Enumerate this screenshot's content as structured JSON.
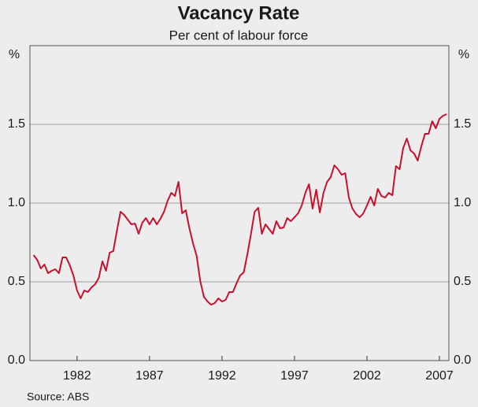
{
  "chart_data": {
    "type": "line",
    "title": "Vacancy Rate",
    "subtitle": "Per cent of labour force",
    "y_unit": "%",
    "source": "Source: ABS",
    "x": [
      1979,
      1979.25,
      1979.5,
      1979.75,
      1980,
      1980.25,
      1980.5,
      1980.75,
      1981,
      1981.25,
      1981.5,
      1981.75,
      1982,
      1982.25,
      1982.5,
      1982.75,
      1983,
      1983.25,
      1983.5,
      1983.75,
      1984,
      1984.25,
      1984.5,
      1984.75,
      1985,
      1985.25,
      1985.5,
      1985.75,
      1986,
      1986.25,
      1986.5,
      1986.75,
      1987,
      1987.25,
      1987.5,
      1987.75,
      1988,
      1988.25,
      1988.5,
      1988.75,
      1989,
      1989.25,
      1989.5,
      1989.75,
      1990,
      1990.25,
      1990.5,
      1990.75,
      1991,
      1991.25,
      1991.5,
      1991.75,
      1992,
      1992.25,
      1992.5,
      1992.75,
      1993,
      1993.25,
      1993.5,
      1993.75,
      1994,
      1994.25,
      1994.5,
      1994.75,
      1995,
      1995.25,
      1995.5,
      1995.75,
      1996,
      1996.25,
      1996.5,
      1996.75,
      1997,
      1997.25,
      1997.5,
      1997.75,
      1998,
      1998.25,
      1998.5,
      1998.75,
      1999,
      1999.25,
      1999.5,
      1999.75,
      2000,
      2000.25,
      2000.5,
      2000.75,
      2001,
      2001.25,
      2001.5,
      2001.75,
      2002,
      2002.25,
      2002.5,
      2002.75,
      2003,
      2003.25,
      2003.5,
      2003.75,
      2004,
      2004.25,
      2004.5,
      2004.75,
      2005,
      2005.25,
      2005.5,
      2005.75,
      2006,
      2006.25,
      2006.5,
      2006.75,
      2007,
      2007.25,
      2007.5
    ],
    "series": [
      {
        "name": "Vacancy rate",
        "color": "#c8102e",
        "values": [
          0.67,
          0.64,
          0.585,
          0.61,
          0.555,
          0.57,
          0.58,
          0.555,
          0.655,
          0.655,
          0.605,
          0.54,
          0.445,
          0.395,
          0.445,
          0.435,
          0.465,
          0.485,
          0.525,
          0.63,
          0.57,
          0.685,
          0.695,
          0.825,
          0.945,
          0.925,
          0.895,
          0.865,
          0.87,
          0.805,
          0.875,
          0.905,
          0.865,
          0.905,
          0.865,
          0.9,
          0.945,
          1.015,
          1.065,
          1.045,
          1.135,
          0.935,
          0.955,
          0.84,
          0.745,
          0.665,
          0.505,
          0.405,
          0.375,
          0.355,
          0.365,
          0.395,
          0.375,
          0.385,
          0.435,
          0.435,
          0.49,
          0.54,
          0.56,
          0.675,
          0.805,
          0.945,
          0.97,
          0.805,
          0.865,
          0.835,
          0.805,
          0.885,
          0.84,
          0.845,
          0.905,
          0.885,
          0.91,
          0.935,
          0.985,
          1.065,
          1.12,
          0.965,
          1.085,
          0.94,
          1.065,
          1.135,
          1.165,
          1.24,
          1.215,
          1.18,
          1.19,
          1.035,
          0.965,
          0.93,
          0.91,
          0.935,
          0.985,
          1.04,
          0.985,
          1.09,
          1.045,
          1.035,
          1.065,
          1.05,
          1.235,
          1.215,
          1.35,
          1.41,
          1.335,
          1.315,
          1.27,
          1.36,
          1.44,
          1.44,
          1.52,
          1.475,
          1.535,
          1.555,
          1.565
        ]
      }
    ],
    "xlim": [
      1978.75,
      2007.65
    ],
    "xticks": [
      1982,
      1987,
      1992,
      1997,
      2002,
      2007
    ],
    "ylim": [
      0,
      2
    ],
    "yticks": [
      {
        "value": 0,
        "label": "0.0"
      },
      0.5,
      {
        "value": 1,
        "label": "1.0"
      },
      1.5
    ],
    "grid": true
  }
}
